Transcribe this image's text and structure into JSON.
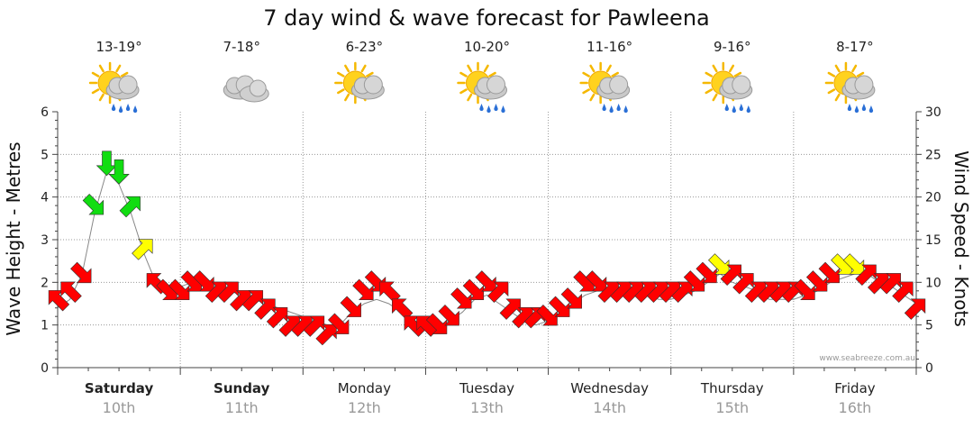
{
  "chart_data": {
    "type": "line",
    "title": "7 day wind & wave forecast for Pawleena",
    "ylabel_left": "Wave Height - Metres",
    "ylabel_right": "Wind Speed - Knots",
    "ylim_left": [
      0,
      6
    ],
    "ylim_right": [
      0,
      30
    ],
    "yticks_left": [
      "0",
      "1",
      "2",
      "3",
      "4",
      "5",
      "6"
    ],
    "yticks_right": [
      "0",
      "5",
      "10",
      "15",
      "20",
      "25",
      "30"
    ],
    "credit": "www.seabreeze.com.au",
    "grid": true,
    "days": [
      {
        "name": "Saturday",
        "date": "10th",
        "temps": "13-19°",
        "icon": "sun-cloud-rain-icon",
        "bold": true
      },
      {
        "name": "Sunday",
        "date": "11th",
        "temps": "7-18°",
        "icon": "cloud-icon",
        "bold": true
      },
      {
        "name": "Monday",
        "date": "12th",
        "temps": "6-23°",
        "icon": "sun-cloud-icon",
        "bold": false
      },
      {
        "name": "Tuesday",
        "date": "13th",
        "temps": "10-20°",
        "icon": "sun-cloud-rain-icon",
        "bold": false
      },
      {
        "name": "Wednesday",
        "date": "14th",
        "temps": "11-16°",
        "icon": "sun-cloud-rain-icon",
        "bold": false
      },
      {
        "name": "Thursday",
        "date": "15th",
        "temps": "9-16°",
        "icon": "sun-cloud-rain-icon",
        "bold": false
      },
      {
        "name": "Friday",
        "date": "16th",
        "temps": "8-17°",
        "icon": "sun-cloud-rain-icon",
        "bold": false
      }
    ],
    "colors": {
      "light_wind": "#11dd11",
      "moderate_wind": "#ffff00",
      "strong_wind": "#ff0000",
      "wave_line": "#888888"
    },
    "series": [
      {
        "name": "Wave Height - Metres",
        "x": [
          0,
          0.1,
          0.2,
          0.3,
          0.4,
          0.5,
          0.6,
          0.7,
          0.8,
          0.9,
          1.0,
          1.1,
          1.2,
          1.3,
          1.4,
          1.5,
          1.6,
          1.7,
          1.8,
          1.9,
          2.0,
          2.1,
          2.2,
          2.3,
          2.4,
          2.5,
          2.6,
          2.7,
          2.8,
          2.9,
          3.0,
          3.1,
          3.2,
          3.3,
          3.4,
          3.5,
          3.6,
          3.7,
          3.8,
          3.9,
          4.0,
          4.1,
          4.2,
          4.3,
          4.4,
          4.5,
          4.6,
          4.7,
          4.8,
          4.9,
          5.0,
          5.1,
          5.2,
          5.3,
          5.4,
          5.5,
          5.6,
          5.7,
          5.8,
          5.9,
          6.0,
          6.1,
          6.2,
          6.3,
          6.4,
          6.5,
          6.6,
          6.7,
          6.8,
          6.9,
          7.0
        ],
        "values": [
          1.4,
          1.6,
          2.2,
          3.6,
          4.6,
          4.3,
          3.6,
          2.7,
          2.0,
          1.9,
          1.9,
          2.0,
          2.0,
          1.9,
          1.8,
          1.7,
          1.6,
          1.5,
          1.4,
          1.3,
          1.2,
          1.1,
          1.0,
          1.0,
          1.3,
          1.5,
          1.6,
          1.5,
          1.3,
          1.1,
          1.0,
          1.0,
          1.1,
          1.3,
          1.6,
          1.7,
          1.5,
          1.3,
          1.1,
          1.0,
          1.1,
          1.3,
          1.5,
          1.7,
          1.8,
          1.9,
          1.9,
          1.8,
          1.7,
          1.6,
          1.6,
          1.7,
          1.8,
          2.0,
          2.2,
          2.0,
          1.9,
          1.8,
          1.6,
          1.6,
          1.6,
          1.7,
          1.8,
          2.0,
          2.1,
          2.2,
          2.2,
          2.0,
          1.9,
          1.7,
          1.5
        ]
      },
      {
        "name": "Wind Speed - Knots",
        "x": [
          0,
          0.1,
          0.2,
          0.3,
          0.4,
          0.5,
          0.6,
          0.7,
          0.8,
          0.9,
          1.0,
          1.1,
          1.2,
          1.3,
          1.4,
          1.5,
          1.6,
          1.7,
          1.8,
          1.9,
          2.0,
          2.1,
          2.2,
          2.3,
          2.4,
          2.5,
          2.6,
          2.7,
          2.8,
          2.9,
          3.0,
          3.1,
          3.2,
          3.3,
          3.4,
          3.5,
          3.6,
          3.7,
          3.8,
          3.9,
          4.0,
          4.1,
          4.2,
          4.3,
          4.4,
          4.5,
          4.6,
          4.7,
          4.8,
          4.9,
          5.0,
          5.1,
          5.2,
          5.3,
          5.4,
          5.5,
          5.6,
          5.7,
          5.8,
          5.9,
          6.0,
          6.1,
          6.2,
          6.3,
          6.4,
          6.5,
          6.6,
          6.7,
          6.8,
          6.9,
          7.0
        ],
        "values": [
          8,
          9,
          11,
          19,
          24,
          23,
          19,
          14,
          10,
          9,
          9,
          10,
          10,
          9,
          9,
          8,
          8,
          7,
          6,
          5,
          5,
          5,
          4,
          5,
          7,
          9,
          10,
          9,
          7,
          5,
          5,
          5,
          6,
          8,
          9,
          10,
          9,
          7,
          6,
          6,
          6,
          7,
          8,
          10,
          10,
          9,
          9,
          9,
          9,
          9,
          9,
          9,
          10,
          11,
          12,
          11,
          10,
          9,
          9,
          9,
          9,
          9,
          10,
          11,
          12,
          12,
          11,
          10,
          10,
          9,
          7
        ],
        "directions_deg": [
          225,
          225,
          45,
          45,
          90,
          90,
          315,
          315,
          225,
          45,
          45,
          45,
          45,
          315,
          315,
          315,
          315,
          315,
          315,
          315,
          315,
          315,
          315,
          45,
          45,
          45,
          45,
          225,
          225,
          225,
          225,
          45,
          45,
          45,
          45,
          45,
          315,
          315,
          315,
          315,
          45,
          45,
          45,
          45,
          45,
          315,
          315,
          315,
          315,
          315,
          315,
          315,
          45,
          45,
          45,
          315,
          315,
          315,
          315,
          315,
          315,
          45,
          45,
          45,
          45,
          45,
          315,
          315,
          315,
          315,
          315
        ],
        "color_bands": {
          "light": [
            15,
            100
          ],
          "moderate": [
            12,
            15
          ],
          "strong": [
            0,
            12
          ]
        }
      }
    ]
  }
}
